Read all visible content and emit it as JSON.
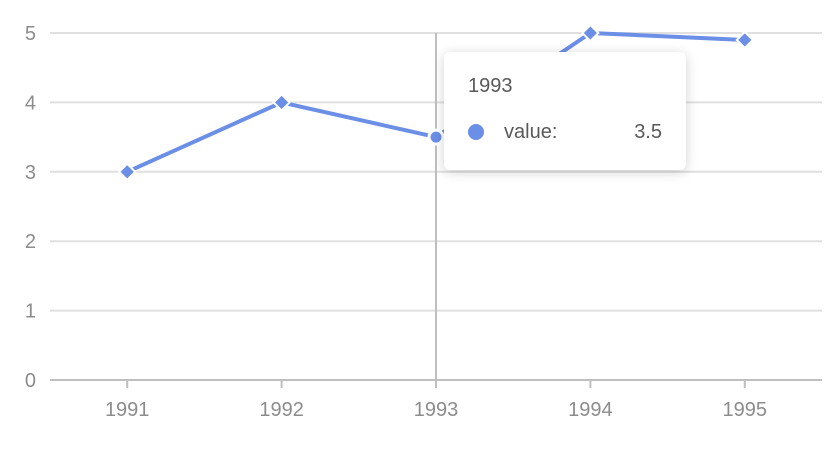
{
  "chart_data": {
    "type": "line",
    "categories": [
      "1991",
      "1992",
      "1993",
      "1994",
      "1995"
    ],
    "series": [
      {
        "values": [
          3,
          4,
          3.5,
          5,
          4.9
        ]
      }
    ],
    "y_ticks": [
      "0",
      "1",
      "2",
      "3",
      "4",
      "5"
    ],
    "ylim": [
      0,
      5
    ],
    "title": "",
    "xlabel": "",
    "ylabel": "",
    "grid": "horizontal",
    "marker": "diamond",
    "line_color": "#6b8fe6",
    "crosshair_category": "1993"
  },
  "tooltip": {
    "title": "1993",
    "name": "value:",
    "value": "3.5",
    "marker_color": "#6b8fe6"
  }
}
